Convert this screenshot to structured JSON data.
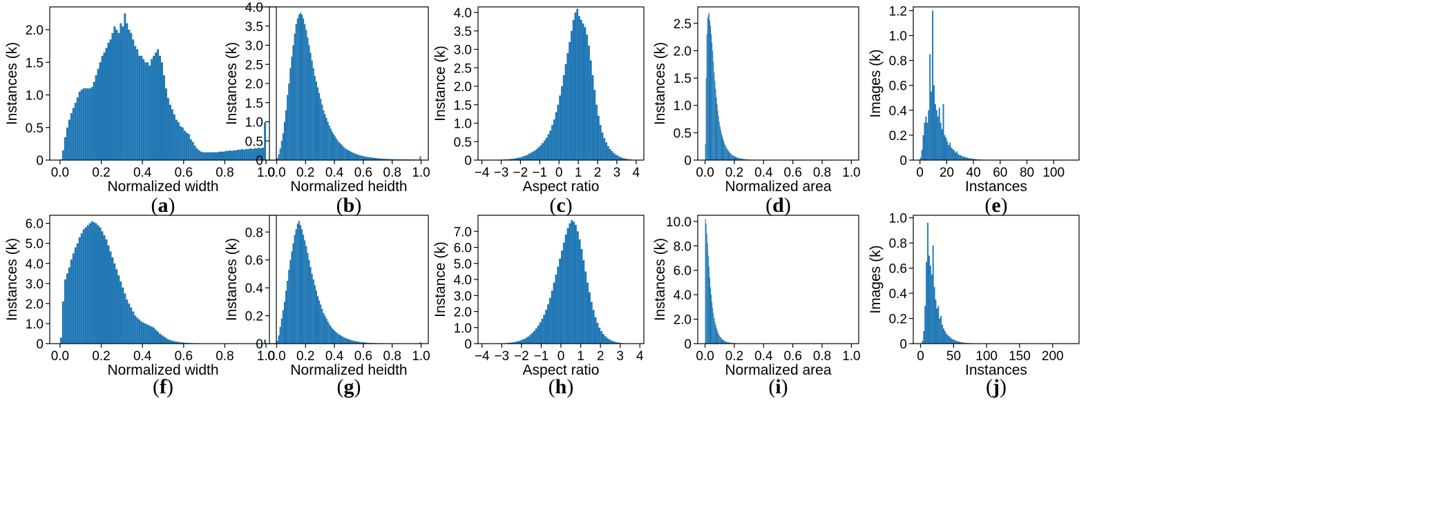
{
  "chart_data": [
    {
      "caption": "a",
      "type": "bar",
      "xlabel": "Normalized width",
      "ylabel": "Instances (k)",
      "xlim": [
        -0.05,
        1.05
      ],
      "ylim": [
        0,
        2.35
      ],
      "xticks": [
        0,
        0.2,
        0.4,
        0.6,
        0.8,
        1.0
      ],
      "xtick_labels": [
        "0.0",
        "0.2",
        "0.4",
        "0.6",
        "0.8",
        "1.0"
      ],
      "yticks": [
        0,
        0.5,
        1.0,
        1.5,
        2.0
      ],
      "ytick_labels": [
        "0",
        "0.5",
        "1.0",
        "1.5",
        "2.0"
      ],
      "bin_start": 0.0,
      "bin_width": 0.01,
      "values": [
        0.01,
        0.15,
        0.35,
        0.5,
        0.62,
        0.72,
        0.8,
        0.88,
        0.96,
        1.05,
        1.08,
        1.1,
        1.1,
        1.1,
        1.1,
        1.12,
        1.2,
        1.3,
        1.4,
        1.5,
        1.6,
        1.65,
        1.72,
        1.8,
        1.85,
        1.95,
        2.05,
        2.0,
        1.95,
        2.1,
        2.05,
        2.25,
        2.1,
        2.0,
        1.95,
        1.85,
        1.75,
        1.7,
        1.6,
        1.6,
        1.55,
        1.5,
        1.5,
        1.45,
        1.55,
        1.6,
        1.65,
        1.7,
        1.6,
        1.5,
        1.3,
        1.1,
        0.95,
        0.85,
        0.78,
        0.7,
        0.62,
        0.58,
        0.52,
        0.5,
        0.45,
        0.42,
        0.4,
        0.32,
        0.28,
        0.22,
        0.18,
        0.15,
        0.13,
        0.12,
        0.12,
        0.12,
        0.12,
        0.12,
        0.12,
        0.12,
        0.12,
        0.13,
        0.13,
        0.13,
        0.14,
        0.14,
        0.15,
        0.14,
        0.15,
        0.15,
        0.16,
        0.16,
        0.17,
        0.16,
        0.17,
        0.17,
        0.18,
        0.17,
        0.18,
        0.18,
        0.19,
        0.18,
        0.19,
        0.58
      ]
    },
    {
      "caption": "b",
      "type": "bar",
      "xlabel": "Normalized heidth",
      "ylabel": "Instances (k)",
      "xlim": [
        -0.05,
        1.05
      ],
      "ylim": [
        0,
        4.0
      ],
      "xticks": [
        0,
        0.2,
        0.4,
        0.6,
        0.8,
        1.0
      ],
      "xtick_labels": [
        "0.0",
        "0.2",
        "0.4",
        "0.6",
        "0.8",
        "1.0"
      ],
      "yticks": [
        0,
        0.5,
        1.0,
        1.5,
        2.0,
        2.5,
        3.0,
        3.5,
        4.0
      ],
      "ytick_labels": [
        "0",
        "0.5",
        "1.0",
        "1.5",
        "2.0",
        "2.5",
        "3.0",
        "3.5",
        "4.0"
      ],
      "bin_start": 0.0,
      "bin_width": 0.01,
      "values": [
        0.05,
        0.15,
        0.3,
        0.5,
        0.7,
        1.0,
        1.3,
        1.7,
        2.0,
        2.4,
        2.7,
        3.0,
        3.3,
        3.55,
        3.7,
        3.8,
        3.85,
        3.8,
        3.7,
        3.55,
        3.4,
        3.2,
        3.0,
        2.8,
        2.6,
        2.4,
        2.2,
        2.05,
        1.9,
        1.75,
        1.6,
        1.45,
        1.3,
        1.2,
        1.1,
        1.0,
        0.9,
        0.82,
        0.74,
        0.68,
        0.62,
        0.56,
        0.5,
        0.46,
        0.42,
        0.38,
        0.34,
        0.31,
        0.28,
        0.26,
        0.24,
        0.22,
        0.2,
        0.18,
        0.17,
        0.15,
        0.14,
        0.13,
        0.12,
        0.11,
        0.1,
        0.09,
        0.085,
        0.08,
        0.075,
        0.07,
        0.065,
        0.06,
        0.055,
        0.05,
        0.045,
        0.04,
        0.04,
        0.035,
        0.035,
        0.03,
        0.03,
        0.03,
        0.025,
        0.025,
        0.025,
        0.02,
        0.02,
        0.02,
        0.02,
        0.02,
        0.02,
        0.018,
        0.018,
        0.018,
        0.016,
        0.016,
        0.016,
        0.015,
        0.015,
        0.015,
        0.015,
        0.014,
        0.014,
        0.1
      ]
    },
    {
      "caption": "c",
      "type": "bar",
      "xlabel": "Aspect ratio",
      "ylabel": "Instance (k)",
      "xlim": [
        -4.2,
        4.4
      ],
      "ylim": [
        0,
        4.15
      ],
      "xticks": [
        -4,
        -3,
        -2,
        -1,
        0,
        1,
        2,
        3,
        4
      ],
      "xtick_labels": [
        "−4",
        "−3",
        "−2",
        "−1",
        "0",
        "1",
        "2",
        "3",
        "4"
      ],
      "yticks": [
        0,
        0.5,
        1.0,
        1.5,
        2.0,
        2.5,
        3.0,
        3.5,
        4.0
      ],
      "ytick_labels": [
        "0",
        "0.5",
        "1.0",
        "1.5",
        "2.0",
        "2.5",
        "3.0",
        "3.5",
        "4.0"
      ],
      "bin_start": -3.3,
      "bin_width": 0.1,
      "values": [
        0.01,
        0.01,
        0.01,
        0.01,
        0.02,
        0.02,
        0.02,
        0.03,
        0.03,
        0.04,
        0.05,
        0.06,
        0.07,
        0.08,
        0.1,
        0.12,
        0.14,
        0.17,
        0.2,
        0.23,
        0.26,
        0.3,
        0.35,
        0.4,
        0.46,
        0.53,
        0.6,
        0.7,
        0.8,
        0.95,
        1.1,
        1.3,
        1.5,
        1.75,
        2.0,
        2.3,
        2.6,
        2.9,
        3.2,
        3.5,
        3.8,
        4.0,
        4.1,
        3.9,
        3.8,
        3.7,
        3.6,
        3.4,
        3.1,
        2.7,
        2.3,
        1.9,
        1.5,
        1.2,
        0.95,
        0.75,
        0.6,
        0.48,
        0.38,
        0.3,
        0.24,
        0.19,
        0.15,
        0.12,
        0.09,
        0.07,
        0.05,
        0.04,
        0.03,
        0.02,
        0.015,
        0.01
      ]
    },
    {
      "caption": "d",
      "type": "bar",
      "xlabel": "Normalized area",
      "ylabel": "Instances (k)",
      "xlim": [
        -0.05,
        1.05
      ],
      "ylim": [
        0,
        2.8
      ],
      "xticks": [
        0,
        0.2,
        0.4,
        0.6,
        0.8,
        1.0
      ],
      "xtick_labels": [
        "0.0",
        "0.2",
        "0.4",
        "0.6",
        "0.8",
        "1.0"
      ],
      "yticks": [
        0,
        0.5,
        1.0,
        1.5,
        2.0,
        2.5
      ],
      "ytick_labels": [
        "0",
        "0.5",
        "1.0",
        "1.5",
        "2.0",
        "2.5"
      ],
      "bin_start": 0.0,
      "bin_width": 0.005,
      "values": [
        0.3,
        1.5,
        2.3,
        2.6,
        2.65,
        2.7,
        2.55,
        2.45,
        2.3,
        2.15,
        2.0,
        1.8,
        1.6,
        1.45,
        1.3,
        1.15,
        1.02,
        0.9,
        0.8,
        0.7,
        0.62,
        0.55,
        0.49,
        0.44,
        0.39,
        0.35,
        0.31,
        0.28,
        0.25,
        0.22,
        0.2,
        0.18,
        0.16,
        0.14,
        0.13,
        0.11,
        0.1,
        0.09,
        0.08,
        0.075,
        0.07,
        0.062,
        0.056,
        0.05,
        0.045,
        0.04,
        0.036,
        0.032,
        0.029,
        0.026,
        0.024,
        0.022,
        0.02,
        0.018,
        0.016,
        0.015,
        0.014,
        0.013,
        0.012,
        0.011,
        0.01,
        0.009,
        0.009,
        0.008,
        0.008,
        0.007,
        0.007,
        0.006,
        0.006,
        0.006,
        0.005,
        0.005,
        0.005,
        0.005,
        0.004,
        0.004,
        0.004,
        0.004,
        0.003,
        0.003
      ]
    },
    {
      "caption": "e",
      "type": "bar",
      "xlabel": "Instances",
      "ylabel": "Images (k)",
      "xlim": [
        -5,
        119
      ],
      "ylim": [
        0,
        1.23
      ],
      "xticks": [
        0,
        20,
        40,
        60,
        80,
        100
      ],
      "xtick_labels": [
        "0",
        "20",
        "40",
        "60",
        "80",
        "100"
      ],
      "yticks": [
        0,
        0.2,
        0.4,
        0.6,
        0.8,
        1.0,
        1.2
      ],
      "ytick_labels": [
        "0",
        "0.2",
        "0.4",
        "0.6",
        "0.8",
        "1.0",
        "1.2"
      ],
      "bin_start": 0.0,
      "bin_width": 1.0,
      "values": [
        0.02,
        0.08,
        0.2,
        0.3,
        0.35,
        0.3,
        0.4,
        0.85,
        0.55,
        1.2,
        0.6,
        0.45,
        0.4,
        0.35,
        0.42,
        0.3,
        0.25,
        0.45,
        0.2,
        0.18,
        0.15,
        0.12,
        0.14,
        0.1,
        0.09,
        0.08,
        0.06,
        0.07,
        0.05,
        0.04,
        0.04,
        0.03,
        0.03,
        0.025,
        0.02,
        0.02,
        0.015,
        0.015,
        0.012,
        0.01,
        0.01,
        0.008,
        0.006,
        0.005,
        0.005,
        0.004,
        0.003,
        0.003,
        0.002,
        0.002
      ]
    },
    {
      "caption": "f",
      "type": "bar",
      "xlabel": "Normalized width",
      "ylabel": "Instances (k)",
      "xlim": [
        -0.05,
        1.05
      ],
      "ylim": [
        0,
        6.4
      ],
      "xticks": [
        0,
        0.2,
        0.4,
        0.6,
        0.8,
        1.0
      ],
      "xtick_labels": [
        "0.0",
        "0.2",
        "0.4",
        "0.6",
        "0.8",
        "1.0"
      ],
      "yticks": [
        0,
        1.0,
        2.0,
        3.0,
        4.0,
        5.0,
        6.0
      ],
      "ytick_labels": [
        "0",
        "1.0",
        "2.0",
        "3.0",
        "4.0",
        "5.0",
        "6.0"
      ],
      "bin_start": 0.0,
      "bin_width": 0.01,
      "values": [
        0.3,
        2.1,
        3.2,
        3.5,
        3.8,
        4.2,
        4.5,
        4.8,
        5.0,
        5.3,
        5.5,
        5.7,
        5.8,
        5.9,
        6.0,
        6.1,
        6.05,
        6.0,
        5.9,
        5.8,
        5.6,
        5.4,
        5.2,
        4.9,
        4.6,
        4.3,
        4.0,
        3.7,
        3.4,
        3.1,
        2.8,
        2.5,
        2.2,
        2.0,
        1.8,
        1.6,
        1.4,
        1.3,
        1.2,
        1.1,
        1.05,
        1.0,
        0.95,
        0.9,
        0.85,
        0.8,
        0.7,
        0.6,
        0.5,
        0.42,
        0.35,
        0.28,
        0.22,
        0.18,
        0.15,
        0.12,
        0.1,
        0.08,
        0.07,
        0.06,
        0.05,
        0.04,
        0.035,
        0.03,
        0.025,
        0.02,
        0.02,
        0.018,
        0.016,
        0.015,
        0.014,
        0.013,
        0.012,
        0.011,
        0.01,
        0.01,
        0.01,
        0.01,
        0.01,
        0.01,
        0.01,
        0.01,
        0.01,
        0.01,
        0.01,
        0.01,
        0.01,
        0.01,
        0.01,
        0.01,
        0.01,
        0.01,
        0.01,
        0.01,
        0.01,
        0.01,
        0.01,
        0.01,
        0.01,
        0.2
      ]
    },
    {
      "caption": "g",
      "type": "bar",
      "xlabel": "Normalized heidth",
      "ylabel": "Instances (k)",
      "xlim": [
        -0.05,
        1.05
      ],
      "ylim": [
        0,
        0.92
      ],
      "xticks": [
        0,
        0.2,
        0.4,
        0.6,
        0.8,
        1.0
      ],
      "xtick_labels": [
        "0.0",
        "0.2",
        "0.4",
        "0.6",
        "0.8",
        "1.0"
      ],
      "yticks": [
        0,
        0.2,
        0.4,
        0.6,
        0.8
      ],
      "ytick_labels": [
        "0",
        "0.2",
        "0.4",
        "0.6",
        "0.8"
      ],
      "bin_start": 0.0,
      "bin_width": 0.01,
      "values": [
        0.02,
        0.06,
        0.12,
        0.18,
        0.24,
        0.3,
        0.38,
        0.45,
        0.53,
        0.6,
        0.66,
        0.72,
        0.78,
        0.82,
        0.86,
        0.88,
        0.85,
        0.82,
        0.78,
        0.74,
        0.7,
        0.65,
        0.6,
        0.55,
        0.5,
        0.46,
        0.42,
        0.38,
        0.34,
        0.31,
        0.28,
        0.25,
        0.22,
        0.2,
        0.18,
        0.16,
        0.14,
        0.125,
        0.11,
        0.1,
        0.09,
        0.08,
        0.072,
        0.065,
        0.058,
        0.052,
        0.046,
        0.041,
        0.037,
        0.033,
        0.029,
        0.026,
        0.023,
        0.02,
        0.018,
        0.016,
        0.014,
        0.012,
        0.011,
        0.01,
        0.009,
        0.008,
        0.007,
        0.006,
        0.006,
        0.005,
        0.005,
        0.004,
        0.004,
        0.004,
        0.003,
        0.003,
        0.003,
        0.003,
        0.003,
        0.002,
        0.002,
        0.002,
        0.002,
        0.002,
        0.002,
        0.002,
        0.002,
        0.002,
        0.002,
        0.002,
        0.002,
        0.002,
        0.002,
        0.002,
        0.002,
        0.002,
        0.002,
        0.002,
        0.002,
        0.002,
        0.002,
        0.002,
        0.002,
        0.01
      ]
    },
    {
      "caption": "h",
      "type": "bar",
      "xlabel": "Aspect ratio",
      "ylabel": "Instance (k)",
      "xlim": [
        -4.2,
        4.2
      ],
      "ylim": [
        0,
        8.0
      ],
      "xticks": [
        -4,
        -3,
        -2,
        -1,
        0,
        1,
        2,
        3,
        4
      ],
      "xtick_labels": [
        "−4",
        "−3",
        "−2",
        "−1",
        "0",
        "1",
        "2",
        "3",
        "4"
      ],
      "yticks": [
        0,
        1.0,
        2.0,
        3.0,
        4.0,
        5.0,
        6.0,
        7.0
      ],
      "ytick_labels": [
        "0",
        "1.0",
        "2.0",
        "3.0",
        "4.0",
        "5.0",
        "6.0",
        "7.0"
      ],
      "bin_start": -3.3,
      "bin_width": 0.1,
      "values": [
        0.01,
        0.01,
        0.02,
        0.02,
        0.03,
        0.04,
        0.05,
        0.06,
        0.08,
        0.1,
        0.13,
        0.16,
        0.2,
        0.25,
        0.3,
        0.37,
        0.45,
        0.55,
        0.67,
        0.8,
        0.95,
        1.12,
        1.32,
        1.55,
        1.8,
        2.1,
        2.45,
        2.85,
        3.3,
        3.8,
        4.3,
        4.8,
        5.3,
        5.8,
        6.3,
        6.8,
        7.2,
        7.5,
        7.7,
        7.6,
        7.4,
        7.0,
        6.5,
        5.9,
        5.2,
        4.5,
        3.8,
        3.2,
        2.6,
        2.1,
        1.65,
        1.3,
        1.0,
        0.78,
        0.6,
        0.46,
        0.35,
        0.27,
        0.2,
        0.15,
        0.11,
        0.08,
        0.06,
        0.04,
        0.03,
        0.02
      ]
    },
    {
      "caption": "i",
      "type": "bar",
      "xlabel": "Normalized area",
      "ylabel": "Instances (k)",
      "xlim": [
        -0.05,
        1.05
      ],
      "ylim": [
        0,
        10.5
      ],
      "xticks": [
        0,
        0.2,
        0.4,
        0.6,
        0.8,
        1.0
      ],
      "xtick_labels": [
        "0.0",
        "0.2",
        "0.4",
        "0.6",
        "0.8",
        "1.0"
      ],
      "yticks": [
        0,
        2.0,
        4.0,
        6.0,
        8.0,
        10.0
      ],
      "ytick_labels": [
        "0",
        "2.0",
        "4.0",
        "6.0",
        "8.0",
        "10.0"
      ],
      "bin_start": 0.0,
      "bin_width": 0.005,
      "values": [
        10.2,
        9.8,
        9.0,
        8.2,
        7.2,
        6.3,
        5.4,
        4.6,
        4.0,
        3.4,
        2.9,
        2.5,
        2.1,
        1.8,
        1.55,
        1.32,
        1.12,
        0.95,
        0.8,
        0.68,
        0.58,
        0.5,
        0.42,
        0.36,
        0.31,
        0.27,
        0.23,
        0.2,
        0.17,
        0.15,
        0.13,
        0.11,
        0.1,
        0.09,
        0.08,
        0.07,
        0.06,
        0.055,
        0.05,
        0.045,
        0.04,
        0.036,
        0.032,
        0.028,
        0.025,
        0.022,
        0.02,
        0.018,
        0.016,
        0.014,
        0.012,
        0.011,
        0.01,
        0.009,
        0.008,
        0.007,
        0.006,
        0.006,
        0.005,
        0.005
      ]
    },
    {
      "caption": "j",
      "type": "bar",
      "xlabel": "Instances",
      "ylabel": "Images (k)",
      "xlim": [
        -11,
        240
      ],
      "ylim": [
        0,
        1.02
      ],
      "xticks": [
        0,
        50,
        100,
        150,
        200
      ],
      "xtick_labels": [
        "0",
        "50",
        "100",
        "150",
        "200"
      ],
      "yticks": [
        0,
        0.2,
        0.4,
        0.6,
        0.8,
        1.0
      ],
      "ytick_labels": [
        "0",
        "0.2",
        "0.4",
        "0.6",
        "0.8",
        "1.0"
      ],
      "bin_start": 0.0,
      "bin_width": 2.0,
      "values": [
        0.0,
        0.02,
        0.1,
        0.3,
        0.65,
        0.96,
        0.7,
        0.62,
        0.55,
        0.78,
        0.45,
        0.35,
        0.28,
        0.3,
        0.2,
        0.22,
        0.15,
        0.12,
        0.1,
        0.08,
        0.07,
        0.06,
        0.05,
        0.04,
        0.035,
        0.03,
        0.025,
        0.02,
        0.018,
        0.015,
        0.012,
        0.01,
        0.008,
        0.007,
        0.006,
        0.005,
        0.004,
        0.004,
        0.003,
        0.003,
        0.002,
        0.002,
        0.002,
        0.002,
        0.001,
        0.001,
        0.001,
        0.001,
        0.001,
        0.001
      ]
    }
  ],
  "style": {
    "bar_color": "#1f77b4",
    "axes_color": "#000000"
  }
}
